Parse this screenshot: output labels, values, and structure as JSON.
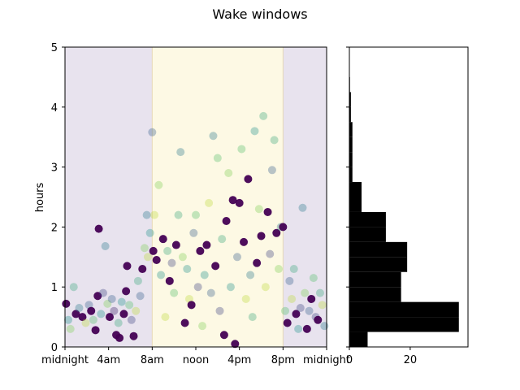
{
  "title": "Wake windows",
  "chart_data": [
    {
      "type": "scatter",
      "ylabel": "hours",
      "xlabel": "",
      "xlim": [
        0,
        24
      ],
      "ylim": [
        0,
        5
      ],
      "x_tick_values": [
        0,
        4,
        8,
        12,
        16,
        20,
        24
      ],
      "x_tick_labels": [
        "midnight",
        "4am",
        "8am",
        "noon",
        "4pm",
        "8pm",
        "midnight"
      ],
      "y_ticks": [
        0,
        1,
        2,
        3,
        4,
        5
      ],
      "background_bands": [
        {
          "from": 0,
          "to": 8,
          "color": "#e8e3ee"
        },
        {
          "from": 8,
          "to": 20,
          "color": "#fdf9e4"
        },
        {
          "from": 20,
          "to": 24,
          "color": "#e8e3ee"
        }
      ],
      "point_color_scale": [
        "#440154",
        "#3b528b",
        "#21918c",
        "#5ec962",
        "#fde725"
      ],
      "points_dense_sample": [
        [
          0.1,
          0.72,
          0
        ],
        [
          0.3,
          0.45,
          0.5
        ],
        [
          0.5,
          0.3,
          0.8
        ],
        [
          0.8,
          1.0,
          0.6
        ],
        [
          1.0,
          0.55,
          0
        ],
        [
          1.3,
          0.65,
          0.4
        ],
        [
          1.6,
          0.5,
          0
        ],
        [
          1.9,
          0.4,
          0.9
        ],
        [
          2.2,
          0.7,
          0.3
        ],
        [
          2.4,
          0.6,
          0
        ],
        [
          2.6,
          0.45,
          0.7
        ],
        [
          2.8,
          0.28,
          0
        ],
        [
          3.0,
          0.85,
          0
        ],
        [
          3.1,
          1.97,
          0
        ],
        [
          3.3,
          0.55,
          0.5
        ],
        [
          3.5,
          0.9,
          0.2
        ],
        [
          3.7,
          1.68,
          0.4
        ],
        [
          3.9,
          0.72,
          0.8
        ],
        [
          4.1,
          0.5,
          0
        ],
        [
          4.3,
          0.8,
          0.3
        ],
        [
          4.5,
          0.6,
          0.1
        ],
        [
          4.7,
          0.2,
          0
        ],
        [
          4.9,
          0.4,
          0.6
        ],
        [
          5.0,
          0.15,
          0
        ],
        [
          5.2,
          0.75,
          0.5
        ],
        [
          5.4,
          0.55,
          0
        ],
        [
          5.6,
          0.93,
          0
        ],
        [
          5.7,
          1.35,
          0
        ],
        [
          5.9,
          0.7,
          0.7
        ],
        [
          6.1,
          0.45,
          0.2
        ],
        [
          6.3,
          0.18,
          0
        ],
        [
          6.5,
          0.6,
          0.9
        ],
        [
          6.7,
          1.1,
          0.6
        ],
        [
          6.9,
          0.85,
          0.3
        ],
        [
          7.1,
          1.3,
          0
        ],
        [
          7.3,
          1.65,
          0.8
        ],
        [
          7.5,
          2.2,
          0.4
        ],
        [
          7.6,
          1.5,
          0.9
        ],
        [
          7.8,
          1.9,
          0.5
        ],
        [
          8.0,
          3.58,
          0.3
        ],
        [
          8.1,
          1.6,
          0
        ],
        [
          8.2,
          2.2,
          0.9
        ],
        [
          8.4,
          1.45,
          0
        ],
        [
          8.6,
          2.7,
          0.8
        ],
        [
          8.8,
          1.2,
          0.5
        ],
        [
          9.0,
          1.8,
          0
        ],
        [
          9.2,
          0.5,
          0.9
        ],
        [
          9.4,
          1.6,
          0.6
        ],
        [
          9.6,
          1.1,
          0
        ],
        [
          9.8,
          1.4,
          0.2
        ],
        [
          10.0,
          0.9,
          0.7
        ],
        [
          10.2,
          1.7,
          0
        ],
        [
          10.4,
          2.2,
          0.6
        ],
        [
          10.6,
          3.25,
          0.4
        ],
        [
          10.8,
          1.5,
          0.8
        ],
        [
          11.0,
          0.4,
          0
        ],
        [
          11.2,
          1.3,
          0.5
        ],
        [
          11.4,
          0.8,
          0.9
        ],
        [
          11.6,
          0.7,
          0
        ],
        [
          11.8,
          1.9,
          0.3
        ],
        [
          12.0,
          2.2,
          0.7
        ],
        [
          12.2,
          1.0,
          0.2
        ],
        [
          12.4,
          1.6,
          0
        ],
        [
          12.6,
          0.35,
          0.8
        ],
        [
          12.8,
          1.2,
          0.5
        ],
        [
          13.0,
          1.7,
          0
        ],
        [
          13.2,
          2.4,
          0.9
        ],
        [
          13.4,
          0.9,
          0.3
        ],
        [
          13.6,
          3.52,
          0.4
        ],
        [
          13.8,
          1.35,
          0
        ],
        [
          14.0,
          3.15,
          0.7
        ],
        [
          14.2,
          0.6,
          0.2
        ],
        [
          14.4,
          1.8,
          0.6
        ],
        [
          14.6,
          0.2,
          0
        ],
        [
          14.8,
          2.1,
          0
        ],
        [
          15.0,
          2.9,
          0.8
        ],
        [
          15.2,
          1.0,
          0.5
        ],
        [
          15.4,
          2.45,
          0
        ],
        [
          15.6,
          0.05,
          0
        ],
        [
          15.8,
          1.5,
          0.3
        ],
        [
          16.0,
          2.4,
          0
        ],
        [
          16.2,
          3.3,
          0.7
        ],
        [
          16.4,
          1.75,
          0
        ],
        [
          16.6,
          0.8,
          0.9
        ],
        [
          16.8,
          2.8,
          0
        ],
        [
          17.0,
          1.2,
          0.4
        ],
        [
          17.2,
          0.5,
          0.6
        ],
        [
          17.4,
          3.6,
          0.5
        ],
        [
          17.6,
          1.4,
          0
        ],
        [
          17.8,
          2.3,
          0.8
        ],
        [
          18.0,
          1.85,
          0
        ],
        [
          18.2,
          3.85,
          0.6
        ],
        [
          18.4,
          1.0,
          0.9
        ],
        [
          18.6,
          2.25,
          0
        ],
        [
          18.8,
          1.55,
          0.2
        ],
        [
          19.0,
          2.95,
          0.3
        ],
        [
          19.2,
          3.45,
          0.6
        ],
        [
          19.4,
          1.9,
          0
        ],
        [
          19.6,
          1.3,
          0.8
        ],
        [
          19.8,
          2.0,
          0.4
        ],
        [
          20.0,
          2.0,
          0
        ],
        [
          20.2,
          0.6,
          0.7
        ],
        [
          20.4,
          0.4,
          0
        ],
        [
          20.6,
          1.1,
          0.3
        ],
        [
          20.8,
          0.8,
          0.9
        ],
        [
          21.0,
          1.3,
          0.6
        ],
        [
          21.2,
          0.55,
          0
        ],
        [
          21.4,
          0.3,
          0.5
        ],
        [
          21.6,
          0.65,
          0.2
        ],
        [
          21.8,
          2.32,
          0.4
        ],
        [
          22.0,
          0.9,
          0.8
        ],
        [
          22.2,
          0.3,
          0
        ],
        [
          22.4,
          0.6,
          0.3
        ],
        [
          22.6,
          0.8,
          0
        ],
        [
          22.8,
          1.15,
          0.7
        ],
        [
          23.0,
          0.5,
          0.2
        ],
        [
          23.2,
          0.45,
          0
        ],
        [
          23.4,
          0.9,
          0.6
        ],
        [
          23.6,
          0.7,
          0.9
        ],
        [
          23.8,
          0.35,
          0.4
        ]
      ]
    },
    {
      "type": "bar",
      "orientation": "horizontal",
      "bin_edges": [
        0,
        0.25,
        0.5,
        0.75,
        1.0,
        1.25,
        1.5,
        1.75,
        2.0,
        2.25,
        2.5,
        2.75,
        3.0,
        3.25,
        3.5,
        3.75,
        4.0,
        4.25,
        4.5
      ],
      "values": [
        6,
        36,
        36,
        17,
        17,
        19,
        19,
        12,
        12,
        4,
        4,
        1,
        1,
        1,
        1,
        0.5,
        0.5,
        0.2
      ],
      "x_ticks": [
        0,
        20
      ],
      "xlim": [
        0,
        39
      ],
      "ylim": [
        0,
        5
      ],
      "bar_color": "#000000"
    }
  ]
}
